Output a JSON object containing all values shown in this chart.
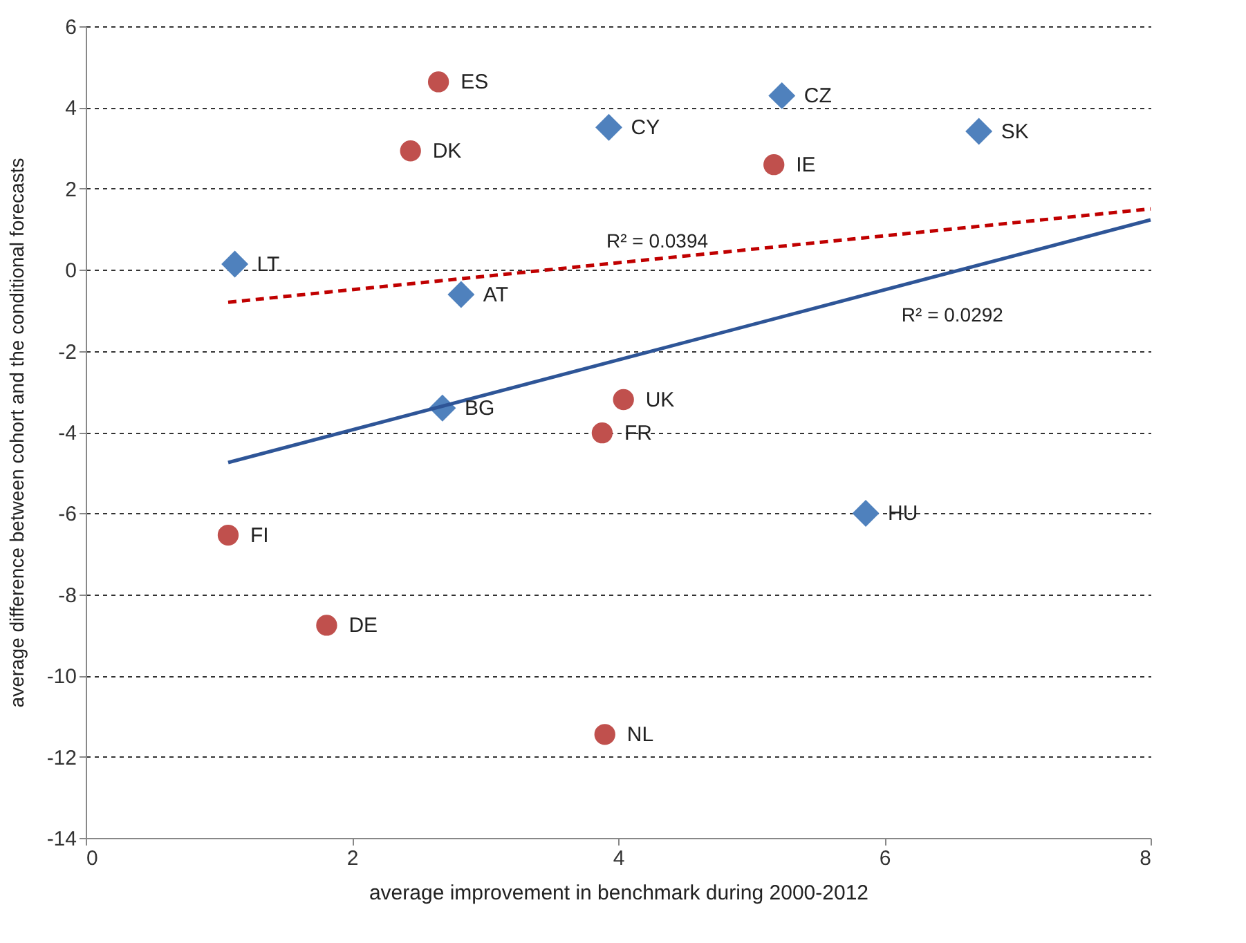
{
  "chart_data": {
    "type": "scatter",
    "xlabel": "average improvement in benchmark during 2000-2012",
    "ylabel": "average difference between cohort and the conditional forecasts",
    "xlim": [
      0,
      8
    ],
    "xticks": [
      0,
      2,
      4,
      6,
      8
    ],
    "ylim": [
      -14,
      6
    ],
    "yticks": [
      -14,
      -12,
      -10,
      -8,
      -6,
      -4,
      -2,
      0,
      2,
      4,
      6
    ],
    "grid": "y",
    "legend": false,
    "series": [
      {
        "marker": "diamond",
        "color": "#4f81bd",
        "x": [
          1.12,
          2.82,
          3.93,
          5.23,
          6.71,
          2.68,
          5.86
        ],
        "values": [
          0.14,
          -0.61,
          3.51,
          4.29,
          3.41,
          -3.41,
          -6.0
        ]
      },
      {
        "marker": "circle",
        "color": "#c0504d",
        "x": [
          2.65,
          2.44,
          5.17,
          4.04,
          3.88,
          1.07,
          1.81,
          3.9
        ],
        "values": [
          4.63,
          2.93,
          2.59,
          -3.2,
          -4.02,
          -6.54,
          -8.76,
          -11.45
        ]
      },
      {
        "type": "line",
        "line_style": "dashed",
        "color": "#c00000",
        "x": [
          1.07,
          8
        ],
        "values": [
          -0.8,
          1.5
        ]
      },
      {
        "type": "line",
        "line_style": "solid",
        "color": "#2e5597",
        "x": [
          1.07,
          8
        ],
        "values": [
          -4.75,
          1.23
        ]
      }
    ],
    "annotations": [
      {
        "text": "LT",
        "x": 1.12,
        "y": 0.14
      },
      {
        "text": "AT",
        "x": 2.82,
        "y": -0.61
      },
      {
        "text": "CY",
        "x": 3.93,
        "y": 3.51
      },
      {
        "text": "CZ",
        "x": 5.23,
        "y": 4.29
      },
      {
        "text": "SK",
        "x": 6.71,
        "y": 3.41
      },
      {
        "text": "BG",
        "x": 2.68,
        "y": -3.41
      },
      {
        "text": "HU",
        "x": 5.86,
        "y": -6.0
      },
      {
        "text": "ES",
        "x": 2.65,
        "y": 4.63
      },
      {
        "text": "DK",
        "x": 2.44,
        "y": 2.93
      },
      {
        "text": "IE",
        "x": 5.17,
        "y": 2.59
      },
      {
        "text": "UK",
        "x": 4.04,
        "y": -3.2
      },
      {
        "text": "FR",
        "x": 3.88,
        "y": -4.02
      },
      {
        "text": "FI",
        "x": 1.07,
        "y": -6.54
      },
      {
        "text": "DE",
        "x": 1.81,
        "y": -8.76
      },
      {
        "text": "NL",
        "x": 3.9,
        "y": -11.45
      },
      "R² = 0.0394",
      "R² = 0.0292"
    ]
  }
}
